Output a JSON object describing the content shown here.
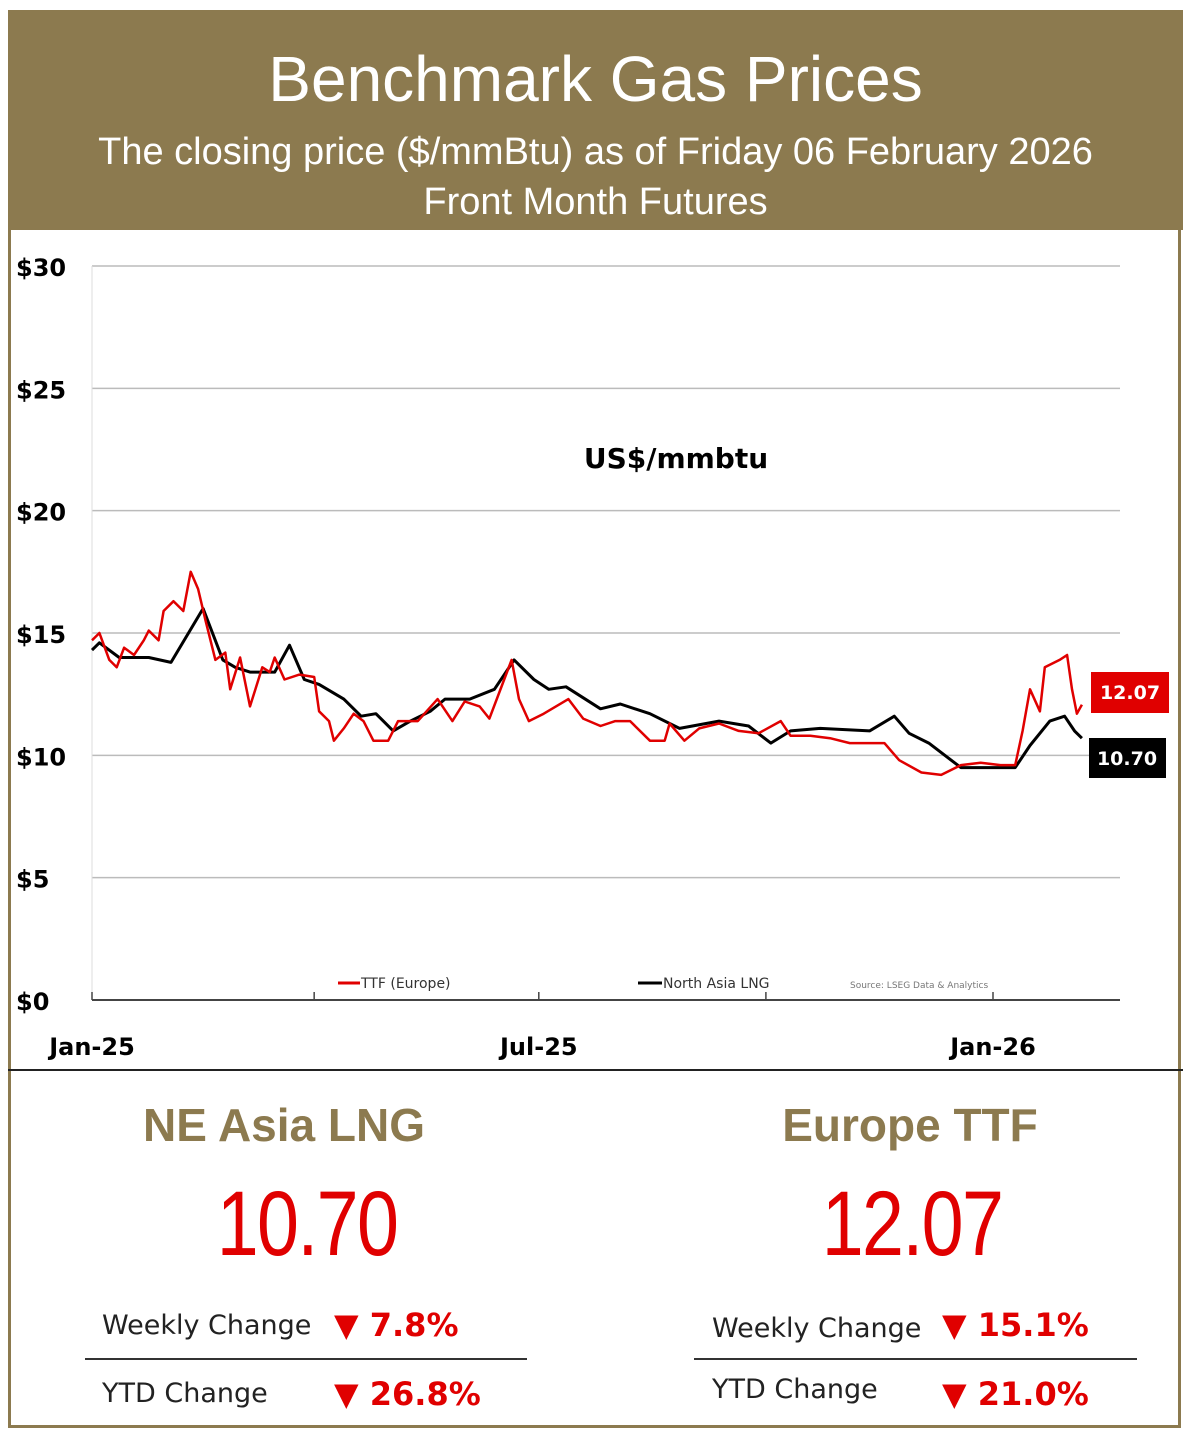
{
  "header": {
    "title": "Benchmark Gas Prices",
    "subtitle": "The closing price ($/mmBtu) as of Friday 06 February 2026",
    "subtitle2": "Front Month  Futures"
  },
  "colors": {
    "gold": "#8c7a4f",
    "ttf": "#e00000",
    "lng": "#000000"
  },
  "chart_data": {
    "type": "line",
    "annotation": "US$/mmbtu",
    "source": "Source: LSEG Data & Analytics",
    "ylim": [
      0,
      30
    ],
    "yticks": [
      "$0",
      "$5",
      "$10",
      "$15",
      "$20",
      "$25",
      "$30"
    ],
    "ytick_values": [
      0,
      5,
      10,
      15,
      20,
      25,
      30
    ],
    "xlim": [
      "2025-01-01",
      "2026-02-28"
    ],
    "xtick_labels": [
      {
        "label": "Jan-25",
        "date": "2025-01-01"
      },
      {
        "label": "Jul-25",
        "date": "2025-07-01"
      },
      {
        "label": "Jan-26",
        "date": "2026-01-01"
      }
    ],
    "grid": true,
    "legend_placement": "bottom",
    "series": [
      {
        "name": "TTF (Europe)",
        "color": "#e00000",
        "last_label": "12.07",
        "points": [
          [
            "2025-01-01",
            14.7
          ],
          [
            "2025-01-04",
            15.0
          ],
          [
            "2025-01-08",
            13.9
          ],
          [
            "2025-01-11",
            13.6
          ],
          [
            "2025-01-14",
            14.4
          ],
          [
            "2025-01-18",
            14.1
          ],
          [
            "2025-01-22",
            14.7
          ],
          [
            "2025-01-24",
            15.1
          ],
          [
            "2025-01-28",
            14.7
          ],
          [
            "2025-01-30",
            15.9
          ],
          [
            "2025-02-03",
            16.3
          ],
          [
            "2025-02-07",
            15.9
          ],
          [
            "2025-02-10",
            17.5
          ],
          [
            "2025-02-13",
            16.8
          ],
          [
            "2025-02-16",
            15.5
          ],
          [
            "2025-02-20",
            13.9
          ],
          [
            "2025-02-24",
            14.2
          ],
          [
            "2025-02-26",
            12.7
          ],
          [
            "2025-03-02",
            14.0
          ],
          [
            "2025-03-06",
            12.0
          ],
          [
            "2025-03-11",
            13.6
          ],
          [
            "2025-03-14",
            13.4
          ],
          [
            "2025-03-16",
            14.0
          ],
          [
            "2025-03-20",
            13.1
          ],
          [
            "2025-03-26",
            13.3
          ],
          [
            "2025-04-01",
            13.2
          ],
          [
            "2025-04-03",
            11.8
          ],
          [
            "2025-04-07",
            11.4
          ],
          [
            "2025-04-09",
            10.6
          ],
          [
            "2025-04-13",
            11.1
          ],
          [
            "2025-04-17",
            11.7
          ],
          [
            "2025-04-21",
            11.4
          ],
          [
            "2025-04-25",
            10.6
          ],
          [
            "2025-05-01",
            10.6
          ],
          [
            "2025-05-05",
            11.4
          ],
          [
            "2025-05-13",
            11.4
          ],
          [
            "2025-05-21",
            12.3
          ],
          [
            "2025-05-27",
            11.4
          ],
          [
            "2025-06-01",
            12.2
          ],
          [
            "2025-06-07",
            12.0
          ],
          [
            "2025-06-11",
            11.5
          ],
          [
            "2025-06-17",
            13.1
          ],
          [
            "2025-06-20",
            13.9
          ],
          [
            "2025-06-23",
            12.3
          ],
          [
            "2025-06-27",
            11.4
          ],
          [
            "2025-07-03",
            11.7
          ],
          [
            "2025-07-13",
            12.3
          ],
          [
            "2025-07-19",
            11.5
          ],
          [
            "2025-07-26",
            11.2
          ],
          [
            "2025-08-01",
            11.4
          ],
          [
            "2025-08-07",
            11.4
          ],
          [
            "2025-08-15",
            10.6
          ],
          [
            "2025-08-21",
            10.6
          ],
          [
            "2025-08-23",
            11.3
          ],
          [
            "2025-08-29",
            10.6
          ],
          [
            "2025-09-04",
            11.1
          ],
          [
            "2025-09-12",
            11.3
          ],
          [
            "2025-09-20",
            11.0
          ],
          [
            "2025-09-28",
            10.9
          ],
          [
            "2025-10-07",
            11.4
          ],
          [
            "2025-10-11",
            10.8
          ],
          [
            "2025-10-19",
            10.8
          ],
          [
            "2025-10-27",
            10.7
          ],
          [
            "2025-11-04",
            10.5
          ],
          [
            "2025-11-12",
            10.5
          ],
          [
            "2025-11-18",
            10.5
          ],
          [
            "2025-11-24",
            9.8
          ],
          [
            "2025-12-03",
            9.3
          ],
          [
            "2025-12-11",
            9.2
          ],
          [
            "2025-12-19",
            9.6
          ],
          [
            "2025-12-27",
            9.7
          ],
          [
            "2026-01-04",
            9.6
          ],
          [
            "2026-01-10",
            9.6
          ],
          [
            "2026-01-13",
            11.0
          ],
          [
            "2026-01-16",
            12.7
          ],
          [
            "2026-01-20",
            11.8
          ],
          [
            "2026-01-22",
            13.6
          ],
          [
            "2026-01-28",
            13.9
          ],
          [
            "2026-01-31",
            14.1
          ],
          [
            "2026-02-02",
            12.7
          ],
          [
            "2026-02-04",
            11.7
          ],
          [
            "2026-02-06",
            12.07
          ]
        ]
      },
      {
        "name": "North Asia LNG",
        "color": "#000000",
        "last_label": "10.70",
        "points": [
          [
            "2025-01-01",
            14.3
          ],
          [
            "2025-01-04",
            14.6
          ],
          [
            "2025-01-12",
            14.0
          ],
          [
            "2025-01-24",
            14.0
          ],
          [
            "2025-02-02",
            13.8
          ],
          [
            "2025-02-15",
            16.0
          ],
          [
            "2025-02-23",
            13.9
          ],
          [
            "2025-02-28",
            13.6
          ],
          [
            "2025-03-06",
            13.4
          ],
          [
            "2025-03-16",
            13.4
          ],
          [
            "2025-03-22",
            14.5
          ],
          [
            "2025-03-28",
            13.1
          ],
          [
            "2025-04-03",
            12.9
          ],
          [
            "2025-04-13",
            12.3
          ],
          [
            "2025-04-20",
            11.6
          ],
          [
            "2025-04-26",
            11.7
          ],
          [
            "2025-05-03",
            11.0
          ],
          [
            "2025-05-10",
            11.4
          ],
          [
            "2025-05-18",
            11.8
          ],
          [
            "2025-05-24",
            12.3
          ],
          [
            "2025-06-03",
            12.3
          ],
          [
            "2025-06-13",
            12.7
          ],
          [
            "2025-06-21",
            13.9
          ],
          [
            "2025-06-29",
            13.1
          ],
          [
            "2025-07-05",
            12.7
          ],
          [
            "2025-07-12",
            12.8
          ],
          [
            "2025-07-26",
            11.9
          ],
          [
            "2025-08-03",
            12.1
          ],
          [
            "2025-08-15",
            11.7
          ],
          [
            "2025-08-27",
            11.1
          ],
          [
            "2025-09-12",
            11.4
          ],
          [
            "2025-09-24",
            11.2
          ],
          [
            "2025-10-03",
            10.5
          ],
          [
            "2025-10-11",
            11.0
          ],
          [
            "2025-10-23",
            11.1
          ],
          [
            "2025-11-12",
            11.0
          ],
          [
            "2025-11-22",
            11.6
          ],
          [
            "2025-11-28",
            10.9
          ],
          [
            "2025-12-06",
            10.5
          ],
          [
            "2025-12-19",
            9.5
          ],
          [
            "2026-01-04",
            9.5
          ],
          [
            "2026-01-10",
            9.5
          ],
          [
            "2026-01-16",
            10.4
          ],
          [
            "2026-01-24",
            11.4
          ],
          [
            "2026-01-30",
            11.6
          ],
          [
            "2026-02-03",
            11.0
          ],
          [
            "2026-02-06",
            10.7
          ]
        ]
      }
    ]
  },
  "panels": [
    {
      "name": "NE Asia LNG",
      "value": "10.70",
      "weekly_label": "Weekly Change",
      "weekly": "7.8%",
      "ytd_label": "YTD Change",
      "ytd": "26.8%",
      "direction": "down"
    },
    {
      "name": "Europe TTF",
      "value": "12.07",
      "weekly_label": "Weekly Change",
      "weekly": "15.1%",
      "ytd_label": "YTD Change",
      "ytd": "21.0%",
      "direction": "down"
    }
  ],
  "arrow_glyph": "▼"
}
